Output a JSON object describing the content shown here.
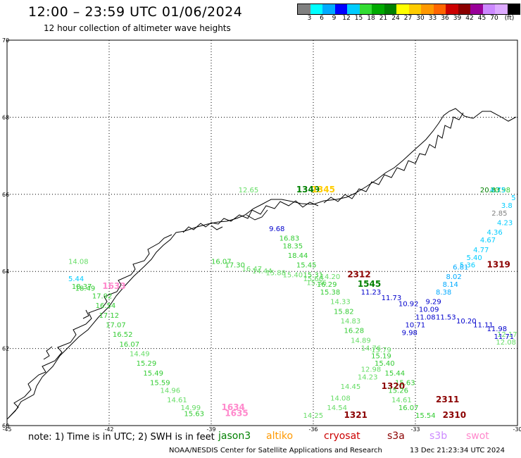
{
  "header": {
    "title": "12:00  –  23:59 UTC 01/06/2024",
    "subtitle": "12 hour collection of altimeter wave heights"
  },
  "colorbar": {
    "colors": [
      "#808080",
      "#00ffff",
      "#00aaff",
      "#0000ff",
      "#00ccff",
      "#33dd33",
      "#00aa00",
      "#008000",
      "#ffff00",
      "#ffcc00",
      "#ff9900",
      "#ff6600",
      "#cc0000",
      "#8b0000",
      "#990099",
      "#cc88ff",
      "#ddaaff",
      "#000000"
    ],
    "labels": [
      "3",
      "6",
      "9",
      "12",
      "15",
      "18",
      "21",
      "24",
      "27",
      "30",
      "33",
      "36",
      "39",
      "42",
      "45",
      "70",
      "(ft)"
    ]
  },
  "map": {
    "lon_ticks": [
      "-45",
      "-42",
      "-39",
      "-36",
      "-33",
      "-30"
    ],
    "lat_ticks": [
      "70",
      "68",
      "66",
      "64",
      "62",
      "60"
    ],
    "lon_range": [
      -45,
      -30
    ],
    "lat_range": [
      60,
      70
    ],
    "wave_labels": [
      {
        "t": "5.44",
        "lon": -43.2,
        "lat": 63.75,
        "c": "#00ccff"
      },
      {
        "t": "18.37",
        "lon": -43.1,
        "lat": 63.55,
        "c": "#33cc33"
      },
      {
        "t": "18.49",
        "lon": -43.0,
        "lat": 63.5,
        "c": "#33cc33"
      },
      {
        "t": "1633",
        "lon": -42.2,
        "lat": 63.55,
        "c": "#ff88cc",
        "b": true
      },
      {
        "t": "17.92",
        "lon": -42.5,
        "lat": 63.3,
        "c": "#33cc33"
      },
      {
        "t": "16.54",
        "lon": -42.4,
        "lat": 63.05,
        "c": "#33cc33"
      },
      {
        "t": "17.12",
        "lon": -42.3,
        "lat": 62.8,
        "c": "#33cc33"
      },
      {
        "t": "17.07",
        "lon": -42.1,
        "lat": 62.55,
        "c": "#33cc33"
      },
      {
        "t": "16.52",
        "lon": -41.9,
        "lat": 62.3,
        "c": "#33cc33"
      },
      {
        "t": "16.07",
        "lon": -41.7,
        "lat": 62.05,
        "c": "#33cc33"
      },
      {
        "t": "14.49",
        "lon": -41.4,
        "lat": 61.8,
        "c": "#66dd66"
      },
      {
        "t": "15.29",
        "lon": -41.2,
        "lat": 61.55,
        "c": "#33cc33"
      },
      {
        "t": "15.49",
        "lon": -41.0,
        "lat": 61.3,
        "c": "#33cc33"
      },
      {
        "t": "15.59",
        "lon": -40.8,
        "lat": 61.05,
        "c": "#33cc33"
      },
      {
        "t": "14.96",
        "lon": -40.5,
        "lat": 60.85,
        "c": "#66dd66"
      },
      {
        "t": "14.61",
        "lon": -40.3,
        "lat": 60.6,
        "c": "#66dd66"
      },
      {
        "t": "14.99",
        "lon": -39.9,
        "lat": 60.4,
        "c": "#66dd66"
      },
      {
        "t": "15.63",
        "lon": -39.8,
        "lat": 60.25,
        "c": "#33cc33"
      },
      {
        "t": "1634",
        "lon": -38.7,
        "lat": 60.4,
        "c": "#ff88cc",
        "b": true
      },
      {
        "t": "1635",
        "lon": -38.6,
        "lat": 60.25,
        "c": "#ff88cc",
        "b": true
      },
      {
        "t": "14.08",
        "lon": -43.2,
        "lat": 64.2,
        "c": "#66dd66"
      },
      {
        "t": "16.07",
        "lon": -39.0,
        "lat": 64.2,
        "c": "#33cc33"
      },
      {
        "t": "17.30",
        "lon": -38.6,
        "lat": 64.1,
        "c": "#33cc33"
      },
      {
        "t": "16.47",
        "lon": -38.1,
        "lat": 64.0,
        "c": "#66dd66"
      },
      {
        "t": "14.44",
        "lon": -37.8,
        "lat": 63.95,
        "c": "#66dd66"
      },
      {
        "t": "15.88",
        "lon": -37.4,
        "lat": 63.9,
        "c": "#66dd66"
      },
      {
        "t": "15.40",
        "lon": -36.9,
        "lat": 63.85,
        "c": "#66dd66"
      },
      {
        "t": "15.66",
        "lon": -36.3,
        "lat": 63.75,
        "c": "#66dd66"
      },
      {
        "t": "14.20",
        "lon": -35.8,
        "lat": 63.8,
        "c": "#66dd66"
      },
      {
        "t": "15.36",
        "lon": -36.2,
        "lat": 63.65,
        "c": "#66dd66"
      },
      {
        "t": "9.68",
        "lon": -37.3,
        "lat": 65.05,
        "c": "#0000cc"
      },
      {
        "t": "16.83",
        "lon": -37.0,
        "lat": 64.8,
        "c": "#33cc33"
      },
      {
        "t": "18.35",
        "lon": -36.9,
        "lat": 64.6,
        "c": "#33cc33"
      },
      {
        "t": "18.44",
        "lon": -36.75,
        "lat": 64.35,
        "c": "#33cc33"
      },
      {
        "t": "15.45",
        "lon": -36.5,
        "lat": 64.1,
        "c": "#33cc33"
      },
      {
        "t": "15.31",
        "lon": -36.3,
        "lat": 63.85,
        "c": "#33cc33"
      },
      {
        "t": "2312",
        "lon": -35.0,
        "lat": 63.85,
        "c": "#8b0000",
        "b": true
      },
      {
        "t": "16.29",
        "lon": -35.9,
        "lat": 63.6,
        "c": "#33cc33"
      },
      {
        "t": "1545",
        "lon": -34.7,
        "lat": 63.6,
        "c": "#008000",
        "b": true
      },
      {
        "t": "15.38",
        "lon": -35.8,
        "lat": 63.4,
        "c": "#33cc33"
      },
      {
        "t": "11.23",
        "lon": -34.6,
        "lat": 63.4,
        "c": "#0000cc"
      },
      {
        "t": "14.33",
        "lon": -35.5,
        "lat": 63.15,
        "c": "#66dd66"
      },
      {
        "t": "11.73",
        "lon": -34.0,
        "lat": 63.25,
        "c": "#0000cc"
      },
      {
        "t": "15.82",
        "lon": -35.4,
        "lat": 62.9,
        "c": "#33cc33"
      },
      {
        "t": "14.83",
        "lon": -35.2,
        "lat": 62.65,
        "c": "#66dd66"
      },
      {
        "t": "16.28",
        "lon": -35.1,
        "lat": 62.4,
        "c": "#33cc33"
      },
      {
        "t": "14.89",
        "lon": -34.9,
        "lat": 62.15,
        "c": "#66dd66"
      },
      {
        "t": "14.76",
        "lon": -34.6,
        "lat": 61.95,
        "c": "#66dd66"
      },
      {
        "t": "13.79",
        "lon": -34.3,
        "lat": 61.9,
        "c": "#66dd66"
      },
      {
        "t": "15.19",
        "lon": -34.3,
        "lat": 61.75,
        "c": "#33cc33"
      },
      {
        "t": "15.40",
        "lon": -34.2,
        "lat": 61.55,
        "c": "#33cc33"
      },
      {
        "t": "12.98",
        "lon": -34.6,
        "lat": 61.4,
        "c": "#66dd66"
      },
      {
        "t": "15.44",
        "lon": -33.9,
        "lat": 61.3,
        "c": "#33cc33"
      },
      {
        "t": "14.23",
        "lon": -34.7,
        "lat": 61.2,
        "c": "#66dd66"
      },
      {
        "t": "15.63",
        "lon": -33.6,
        "lat": 61.05,
        "c": "#33cc33"
      },
      {
        "t": "14.45",
        "lon": -35.2,
        "lat": 60.95,
        "c": "#66dd66"
      },
      {
        "t": "1320",
        "lon": -34.0,
        "lat": 60.95,
        "c": "#8b0000",
        "b": true
      },
      {
        "t": "15.26",
        "lon": -33.8,
        "lat": 60.85,
        "c": "#33cc33"
      },
      {
        "t": "14.08",
        "lon": -35.5,
        "lat": 60.65,
        "c": "#66dd66"
      },
      {
        "t": "14.61",
        "lon": -33.7,
        "lat": 60.6,
        "c": "#66dd66"
      },
      {
        "t": "2311",
        "lon": -32.4,
        "lat": 60.6,
        "c": "#8b0000",
        "b": true
      },
      {
        "t": "14.54",
        "lon": -35.6,
        "lat": 60.4,
        "c": "#66dd66"
      },
      {
        "t": "16.07",
        "lon": -33.5,
        "lat": 60.4,
        "c": "#33cc33"
      },
      {
        "t": "14.25",
        "lon": -36.3,
        "lat": 60.2,
        "c": "#66dd66"
      },
      {
        "t": "1321",
        "lon": -35.1,
        "lat": 60.2,
        "c": "#8b0000",
        "b": true
      },
      {
        "t": "15.54",
        "lon": -33.0,
        "lat": 60.2,
        "c": "#33cc33"
      },
      {
        "t": "2310",
        "lon": -32.2,
        "lat": 60.2,
        "c": "#8b0000",
        "b": true
      },
      {
        "t": "12.65",
        "lon": -38.2,
        "lat": 66.05,
        "c": "#66dd66"
      },
      {
        "t": "1349",
        "lon": -36.5,
        "lat": 66.05,
        "c": "#008000",
        "b": true
      },
      {
        "t": "1345",
        "lon": -36.05,
        "lat": 66.05,
        "c": "#ffcc00",
        "b": true
      },
      {
        "t": "20.83",
        "lon": -31.1,
        "lat": 66.05,
        "c": "#008000"
      },
      {
        "t": "20.98",
        "lon": -30.8,
        "lat": 66.05,
        "c": "#33cc33"
      },
      {
        "t": "4.75",
        "lon": -30.35,
        "lat": 66.05,
        "c": "#00ccff"
      },
      {
        "t": "5",
        "lon": -30.05,
        "lat": 65.85,
        "c": "#00ccff"
      },
      {
        "t": "3.8",
        "lon": -30.15,
        "lat": 65.65,
        "c": "#00ccff"
      },
      {
        "t": "2.85",
        "lon": -30.3,
        "lat": 65.45,
        "c": "#808080"
      },
      {
        "t": "4.23",
        "lon": -30.6,
        "lat": 65.2,
        "c": "#00ccff"
      },
      {
        "t": "4.36",
        "lon": -30.9,
        "lat": 64.95,
        "c": "#00ccff"
      },
      {
        "t": "4.67",
        "lon": -31.1,
        "lat": 64.75,
        "c": "#00ccff"
      },
      {
        "t": "4.77",
        "lon": -31.3,
        "lat": 64.5,
        "c": "#00ccff"
      },
      {
        "t": "5.40",
        "lon": -31.5,
        "lat": 64.3,
        "c": "#00ccff"
      },
      {
        "t": "1319",
        "lon": -30.9,
        "lat": 64.1,
        "c": "#8b0000",
        "b": true
      },
      {
        "t": "5.36",
        "lon": -31.7,
        "lat": 64.1,
        "c": "#00ccff"
      },
      {
        "t": "6.81",
        "lon": -31.9,
        "lat": 64.05,
        "c": "#00aaff"
      },
      {
        "t": "8.02",
        "lon": -32.1,
        "lat": 63.8,
        "c": "#00aaff"
      },
      {
        "t": "8.14",
        "lon": -32.2,
        "lat": 63.6,
        "c": "#00aaff"
      },
      {
        "t": "8.38",
        "lon": -32.4,
        "lat": 63.4,
        "c": "#00aaff"
      },
      {
        "t": "9.29",
        "lon": -32.7,
        "lat": 63.15,
        "c": "#0000cc"
      },
      {
        "t": "10.92",
        "lon": -33.5,
        "lat": 63.1,
        "c": "#0000cc"
      },
      {
        "t": "10.09",
        "lon": -32.9,
        "lat": 62.95,
        "c": "#0000cc"
      },
      {
        "t": "11.08",
        "lon": -33.0,
        "lat": 62.75,
        "c": "#0000cc"
      },
      {
        "t": "11.53",
        "lon": -32.4,
        "lat": 62.75,
        "c": "#0000cc"
      },
      {
        "t": "10.20",
        "lon": -31.8,
        "lat": 62.65,
        "c": "#0000cc"
      },
      {
        "t": "11.11",
        "lon": -31.3,
        "lat": 62.55,
        "c": "#0000cc"
      },
      {
        "t": "10.71",
        "lon": -33.3,
        "lat": 62.55,
        "c": "#0000cc"
      },
      {
        "t": "11.98",
        "lon": -30.9,
        "lat": 62.45,
        "c": "#0000cc"
      },
      {
        "t": "12.17",
        "lon": -30.6,
        "lat": 62.3,
        "c": "#66dd66"
      },
      {
        "t": "9.98",
        "lon": -33.4,
        "lat": 62.35,
        "c": "#0000cc"
      },
      {
        "t": "11.71",
        "lon": -30.1,
        "lat": 62.25,
        "c": "#0000cc"
      },
      {
        "t": "12.08",
        "lon": -30.0,
        "lat": 62.1,
        "c": "#66dd66"
      }
    ]
  },
  "footer": {
    "note_prefix": "note:  1) Time is in UTC; 2) SWH is in feet",
    "satellites": [
      {
        "name": "jason3",
        "color": "#008000"
      },
      {
        "name": "altiko",
        "color": "#ff9900"
      },
      {
        "name": "cryosat",
        "color": "#cc0000"
      },
      {
        "name": "s3a",
        "color": "#8b0000"
      },
      {
        "name": "s3b",
        "color": "#cc88ff"
      },
      {
        "name": "swot",
        "color": "#ff88cc"
      }
    ],
    "credit": "NOAA/NESDIS Center for Satellite Applications and Research",
    "timestamp": "13 Dec 21:23:34 UTC 2024"
  }
}
